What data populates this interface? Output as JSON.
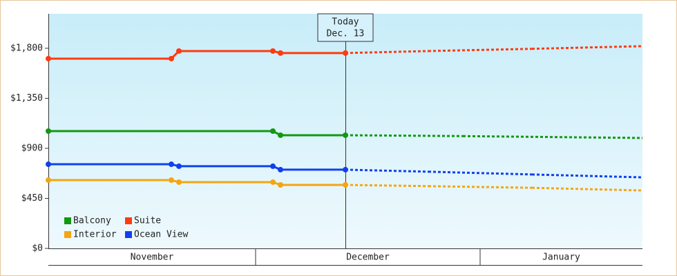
{
  "chart_data": {
    "type": "line",
    "today": {
      "label": [
        "Today",
        "Dec. 13"
      ],
      "x": 43
    },
    "months": [
      {
        "label": "November",
        "start": 0,
        "end": 30
      },
      {
        "label": "December",
        "start": 30,
        "end": 62.5
      },
      {
        "label": "January",
        "start": 62.5,
        "end": 86
      }
    ],
    "xlim": [
      0,
      86
    ],
    "ylim": [
      0,
      2110
    ],
    "yticks": [
      {
        "value": 0,
        "label": "$0"
      },
      {
        "value": 450,
        "label": "$450"
      },
      {
        "value": 900,
        "label": "$900"
      },
      {
        "value": 1350,
        "label": "$1,350"
      },
      {
        "value": 1800,
        "label": "$1,800"
      }
    ],
    "legend": "lower left",
    "series": [
      {
        "name": "Balcony",
        "color": "#119911",
        "x": [
          0,
          32.5,
          33.6,
          43,
          60,
          86
        ],
        "values": [
          1055,
          1055,
          1018,
          1018,
          1010,
          993
        ]
      },
      {
        "name": "Suite",
        "color": "#ff3a10",
        "x": [
          0,
          17.8,
          18.9,
          32.5,
          33.6,
          43,
          55,
          70,
          86
        ],
        "values": [
          1707,
          1707,
          1775,
          1775,
          1757,
          1757,
          1775,
          1795,
          1819
        ]
      },
      {
        "name": "Interior",
        "color": "#f5a511",
        "x": [
          0,
          17.8,
          18.9,
          32.5,
          33.6,
          43,
          55,
          70,
          86
        ],
        "values": [
          614,
          614,
          596,
          596,
          571,
          571,
          560,
          545,
          521
        ]
      },
      {
        "name": "Ocean View",
        "color": "#1040ee",
        "x": [
          0,
          17.8,
          18.9,
          32.5,
          33.6,
          43,
          55,
          70,
          86
        ],
        "values": [
          757,
          757,
          739,
          739,
          708,
          708,
          690,
          665,
          639
        ]
      }
    ]
  }
}
